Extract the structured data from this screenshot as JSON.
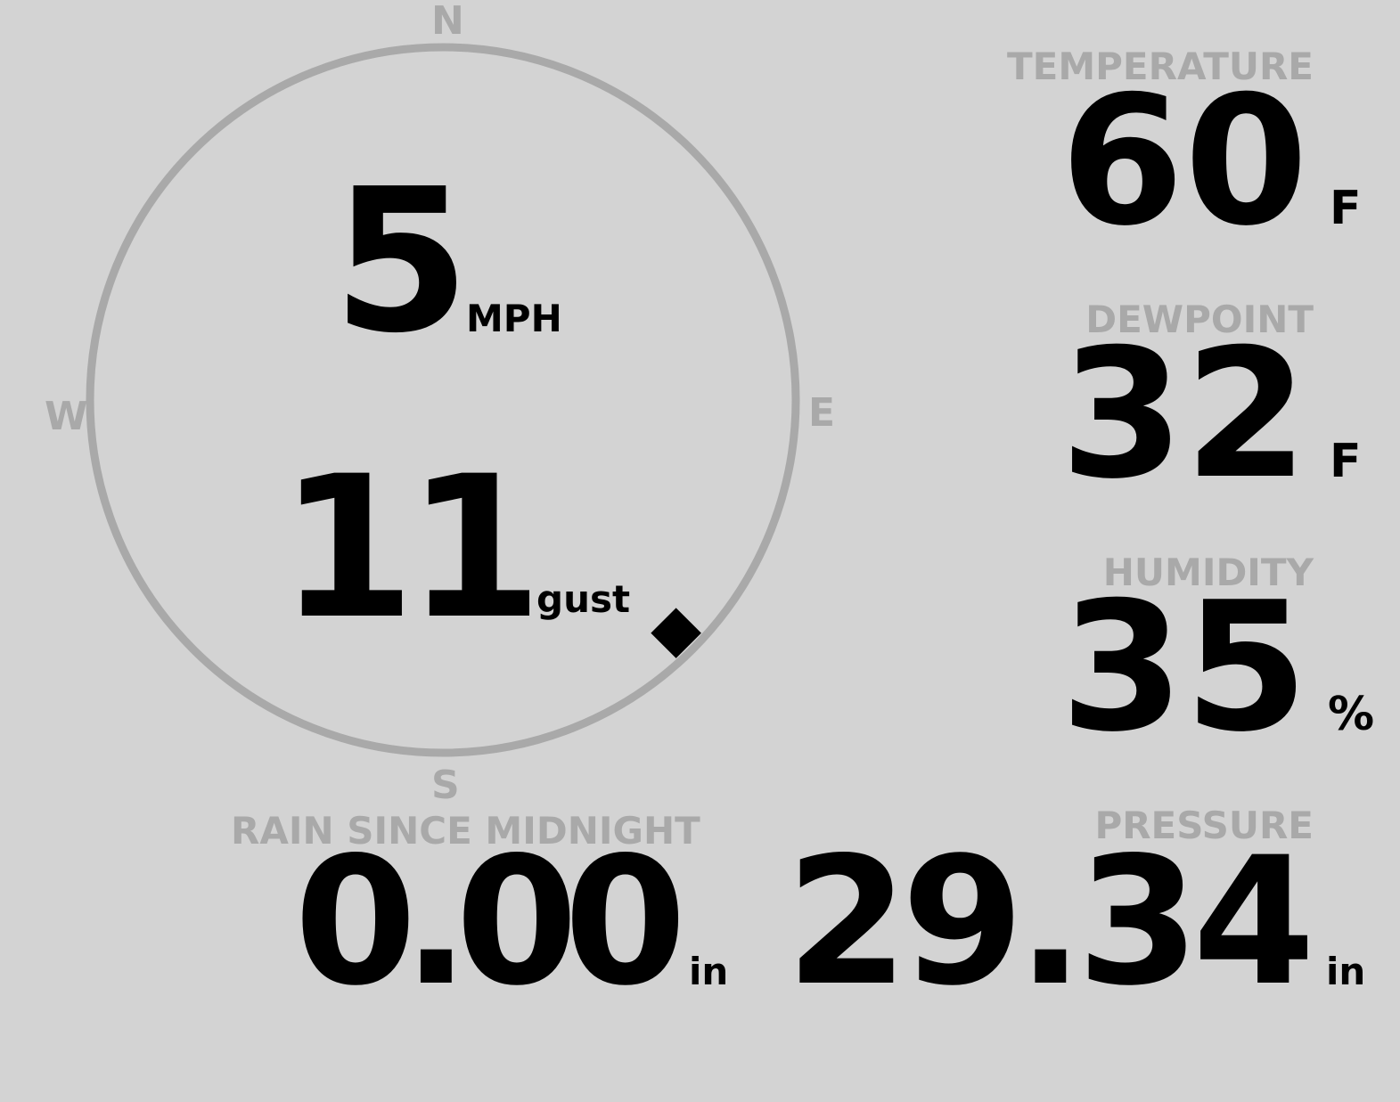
{
  "wind": {
    "compass": {
      "n": "N",
      "e": "E",
      "s": "S",
      "w": "W"
    },
    "direction_deg": 135,
    "speed": "5",
    "speed_unit": "MPH",
    "gust": "11",
    "gust_unit": "gust"
  },
  "temperature": {
    "label": "TEMPERATURE",
    "value": "60",
    "unit": "F"
  },
  "dewpoint": {
    "label": "DEWPOINT",
    "value": "32",
    "unit": "F"
  },
  "humidity": {
    "label": "HUMIDITY",
    "value": "35",
    "unit": "%"
  },
  "rain": {
    "label": "RAIN SINCE MIDNIGHT",
    "value": "0.00",
    "unit": "in"
  },
  "pressure": {
    "label": "PRESSURE",
    "value": "29.34",
    "unit": "in"
  },
  "colors": {
    "background": "#d3d3d3",
    "label": "#a9a9a9",
    "value": "#000000"
  }
}
